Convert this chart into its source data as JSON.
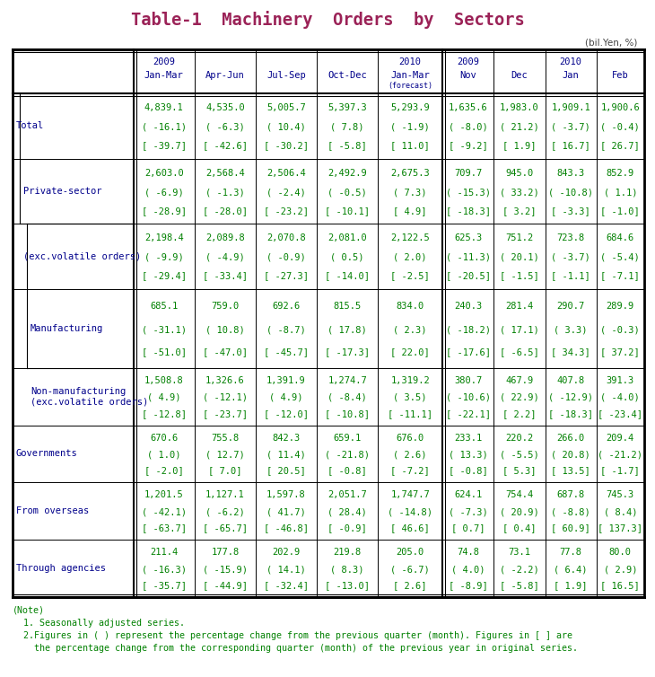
{
  "title": "Table-1  Machinery  Orders  by  Sectors",
  "title_color": "#9B2257",
  "unit_label": "(bil.Yen, %)",
  "header_years": [
    "2009",
    "",
    "",
    "",
    "2010",
    "2009",
    "",
    "2010",
    ""
  ],
  "header_periods": [
    "Jan-Mar",
    "Apr-Jun",
    "Jul-Sep",
    "Oct-Dec",
    "Jan-Mar",
    "Nov",
    "Dec",
    "Jan",
    "Feb"
  ],
  "header_forecast": [
    false,
    false,
    false,
    false,
    true,
    false,
    false,
    false,
    false
  ],
  "row_labels": [
    "Total",
    "Private-sector",
    "(exc.volatile orders)",
    "Manufacturing",
    "Non-manufacturing\n(exc.volatile orders)",
    "Governments",
    "From overseas",
    "Through agencies"
  ],
  "data": [
    [
      [
        "4,839.1",
        "( -16.1)",
        "[ -39.7]"
      ],
      [
        "4,535.0",
        "( -6.3)",
        "[ -42.6]"
      ],
      [
        "5,005.7",
        "( 10.4)",
        "[ -30.2]"
      ],
      [
        "5,397.3",
        "( 7.8)",
        "[ -5.8]"
      ],
      [
        "5,293.9",
        "( -1.9)",
        "[ 11.0]"
      ],
      [
        "1,635.6",
        "( -8.0)",
        "[ -9.2]"
      ],
      [
        "1,983.0",
        "( 21.2)",
        "[ 1.9]"
      ],
      [
        "1,909.1",
        "( -3.7)",
        "[ 16.7]"
      ],
      [
        "1,900.6",
        "( -0.4)",
        "[ 26.7]"
      ]
    ],
    [
      [
        "2,603.0",
        "( -6.9)",
        "[ -28.9]"
      ],
      [
        "2,568.4",
        "( -1.3)",
        "[ -28.0]"
      ],
      [
        "2,506.4",
        "( -2.4)",
        "[ -23.2]"
      ],
      [
        "2,492.9",
        "( -0.5)",
        "[ -10.1]"
      ],
      [
        "2,675.3",
        "( 7.3)",
        "[ 4.9]"
      ],
      [
        "709.7",
        "( -15.3)",
        "[ -18.3]"
      ],
      [
        "945.0",
        "( 33.2)",
        "[ 3.2]"
      ],
      [
        "843.3",
        "( -10.8)",
        "[ -3.3]"
      ],
      [
        "852.9",
        "( 1.1)",
        "[ -1.0]"
      ]
    ],
    [
      [
        "2,198.4",
        "( -9.9)",
        "[ -29.4]"
      ],
      [
        "2,089.8",
        "( -4.9)",
        "[ -33.4]"
      ],
      [
        "2,070.8",
        "( -0.9)",
        "[ -27.3]"
      ],
      [
        "2,081.0",
        "( 0.5)",
        "[ -14.0]"
      ],
      [
        "2,122.5",
        "( 2.0)",
        "[ -2.5]"
      ],
      [
        "625.3",
        "( -11.3)",
        "[ -20.5]"
      ],
      [
        "751.2",
        "( 20.1)",
        "[ -1.5]"
      ],
      [
        "723.8",
        "( -3.7)",
        "[ -1.1]"
      ],
      [
        "684.6",
        "( -5.4)",
        "[ -7.1]"
      ]
    ],
    [
      [
        "685.1",
        "( -31.1)",
        "[ -51.0]"
      ],
      [
        "759.0",
        "( 10.8)",
        "[ -47.0]"
      ],
      [
        "692.6",
        "( -8.7)",
        "[ -45.7]"
      ],
      [
        "815.5",
        "( 17.8)",
        "[ -17.3]"
      ],
      [
        "834.0",
        "( 2.3)",
        "[ 22.0]"
      ],
      [
        "240.3",
        "( -18.2)",
        "[ -17.6]"
      ],
      [
        "281.4",
        "( 17.1)",
        "[ -6.5]"
      ],
      [
        "290.7",
        "( 3.3)",
        "[ 34.3]"
      ],
      [
        "289.9",
        "( -0.3)",
        "[ 37.2]"
      ]
    ],
    [
      [
        "1,508.8",
        "( 4.9)",
        "[ -12.8]"
      ],
      [
        "1,326.6",
        "( -12.1)",
        "[ -23.7]"
      ],
      [
        "1,391.9",
        "( 4.9)",
        "[ -12.0]"
      ],
      [
        "1,274.7",
        "( -8.4)",
        "[ -10.8]"
      ],
      [
        "1,319.2",
        "( 3.5)",
        "[ -11.1]"
      ],
      [
        "380.7",
        "( -10.6)",
        "[ -22.1]"
      ],
      [
        "467.9",
        "( 22.9)",
        "[ 2.2]"
      ],
      [
        "407.8",
        "( -12.9)",
        "[ -18.3]"
      ],
      [
        "391.3",
        "( -4.0)",
        "[ -23.4]"
      ]
    ],
    [
      [
        "670.6",
        "( 1.0)",
        "[ -2.0]"
      ],
      [
        "755.8",
        "( 12.7)",
        "[ 7.0]"
      ],
      [
        "842.3",
        "( 11.4)",
        "[ 20.5]"
      ],
      [
        "659.1",
        "( -21.8)",
        "[ -0.8]"
      ],
      [
        "676.0",
        "( 2.6)",
        "[ -7.2]"
      ],
      [
        "233.1",
        "( 13.3)",
        "[ -0.8]"
      ],
      [
        "220.2",
        "( -5.5)",
        "[ 5.3]"
      ],
      [
        "266.0",
        "( 20.8)",
        "[ 13.5]"
      ],
      [
        "209.4",
        "( -21.2)",
        "[ -1.7]"
      ]
    ],
    [
      [
        "1,201.5",
        "( -42.1)",
        "[ -63.7]"
      ],
      [
        "1,127.1",
        "( -6.2)",
        "[ -65.7]"
      ],
      [
        "1,597.8",
        "( 41.7)",
        "[ -46.8]"
      ],
      [
        "2,051.7",
        "( 28.4)",
        "[ -0.9]"
      ],
      [
        "1,747.7",
        "( -14.8)",
        "[ 46.6]"
      ],
      [
        "624.1",
        "( -7.3)",
        "[ 0.7]"
      ],
      [
        "754.4",
        "( 20.9)",
        "[ 0.4]"
      ],
      [
        "687.8",
        "( -8.8)",
        "[ 60.9]"
      ],
      [
        "745.3",
        "( 8.4)",
        "[ 137.3]"
      ]
    ],
    [
      [
        "211.4",
        "( -16.3)",
        "[ -35.7]"
      ],
      [
        "177.8",
        "( -15.9)",
        "[ -44.9]"
      ],
      [
        "202.9",
        "( 14.1)",
        "[ -32.4]"
      ],
      [
        "219.8",
        "( 8.3)",
        "[ -13.0]"
      ],
      [
        "205.0",
        "( -6.7)",
        "[ 2.6]"
      ],
      [
        "74.8",
        "( 4.0)",
        "[ -8.9]"
      ],
      [
        "73.1",
        "( -2.2)",
        "[ -5.8]"
      ],
      [
        "77.8",
        "( 6.4)",
        "[ 1.9]"
      ],
      [
        "80.0",
        "( 2.9)",
        "[ 16.5]"
      ]
    ]
  ],
  "note_lines": [
    "(Note)",
    "  1. Seasonally adjusted series.",
    "  2.Figures in ( ) represent the percentage change from the previous quarter (month). Figures in [ ] are",
    "    the percentage change from the corresponding quarter (month) of the previous year in original series."
  ],
  "header_color": "#00008B",
  "data_color": "#008000",
  "label_color": "#00008B",
  "note_color": "#008000",
  "bg_color": "#FFFFFF"
}
